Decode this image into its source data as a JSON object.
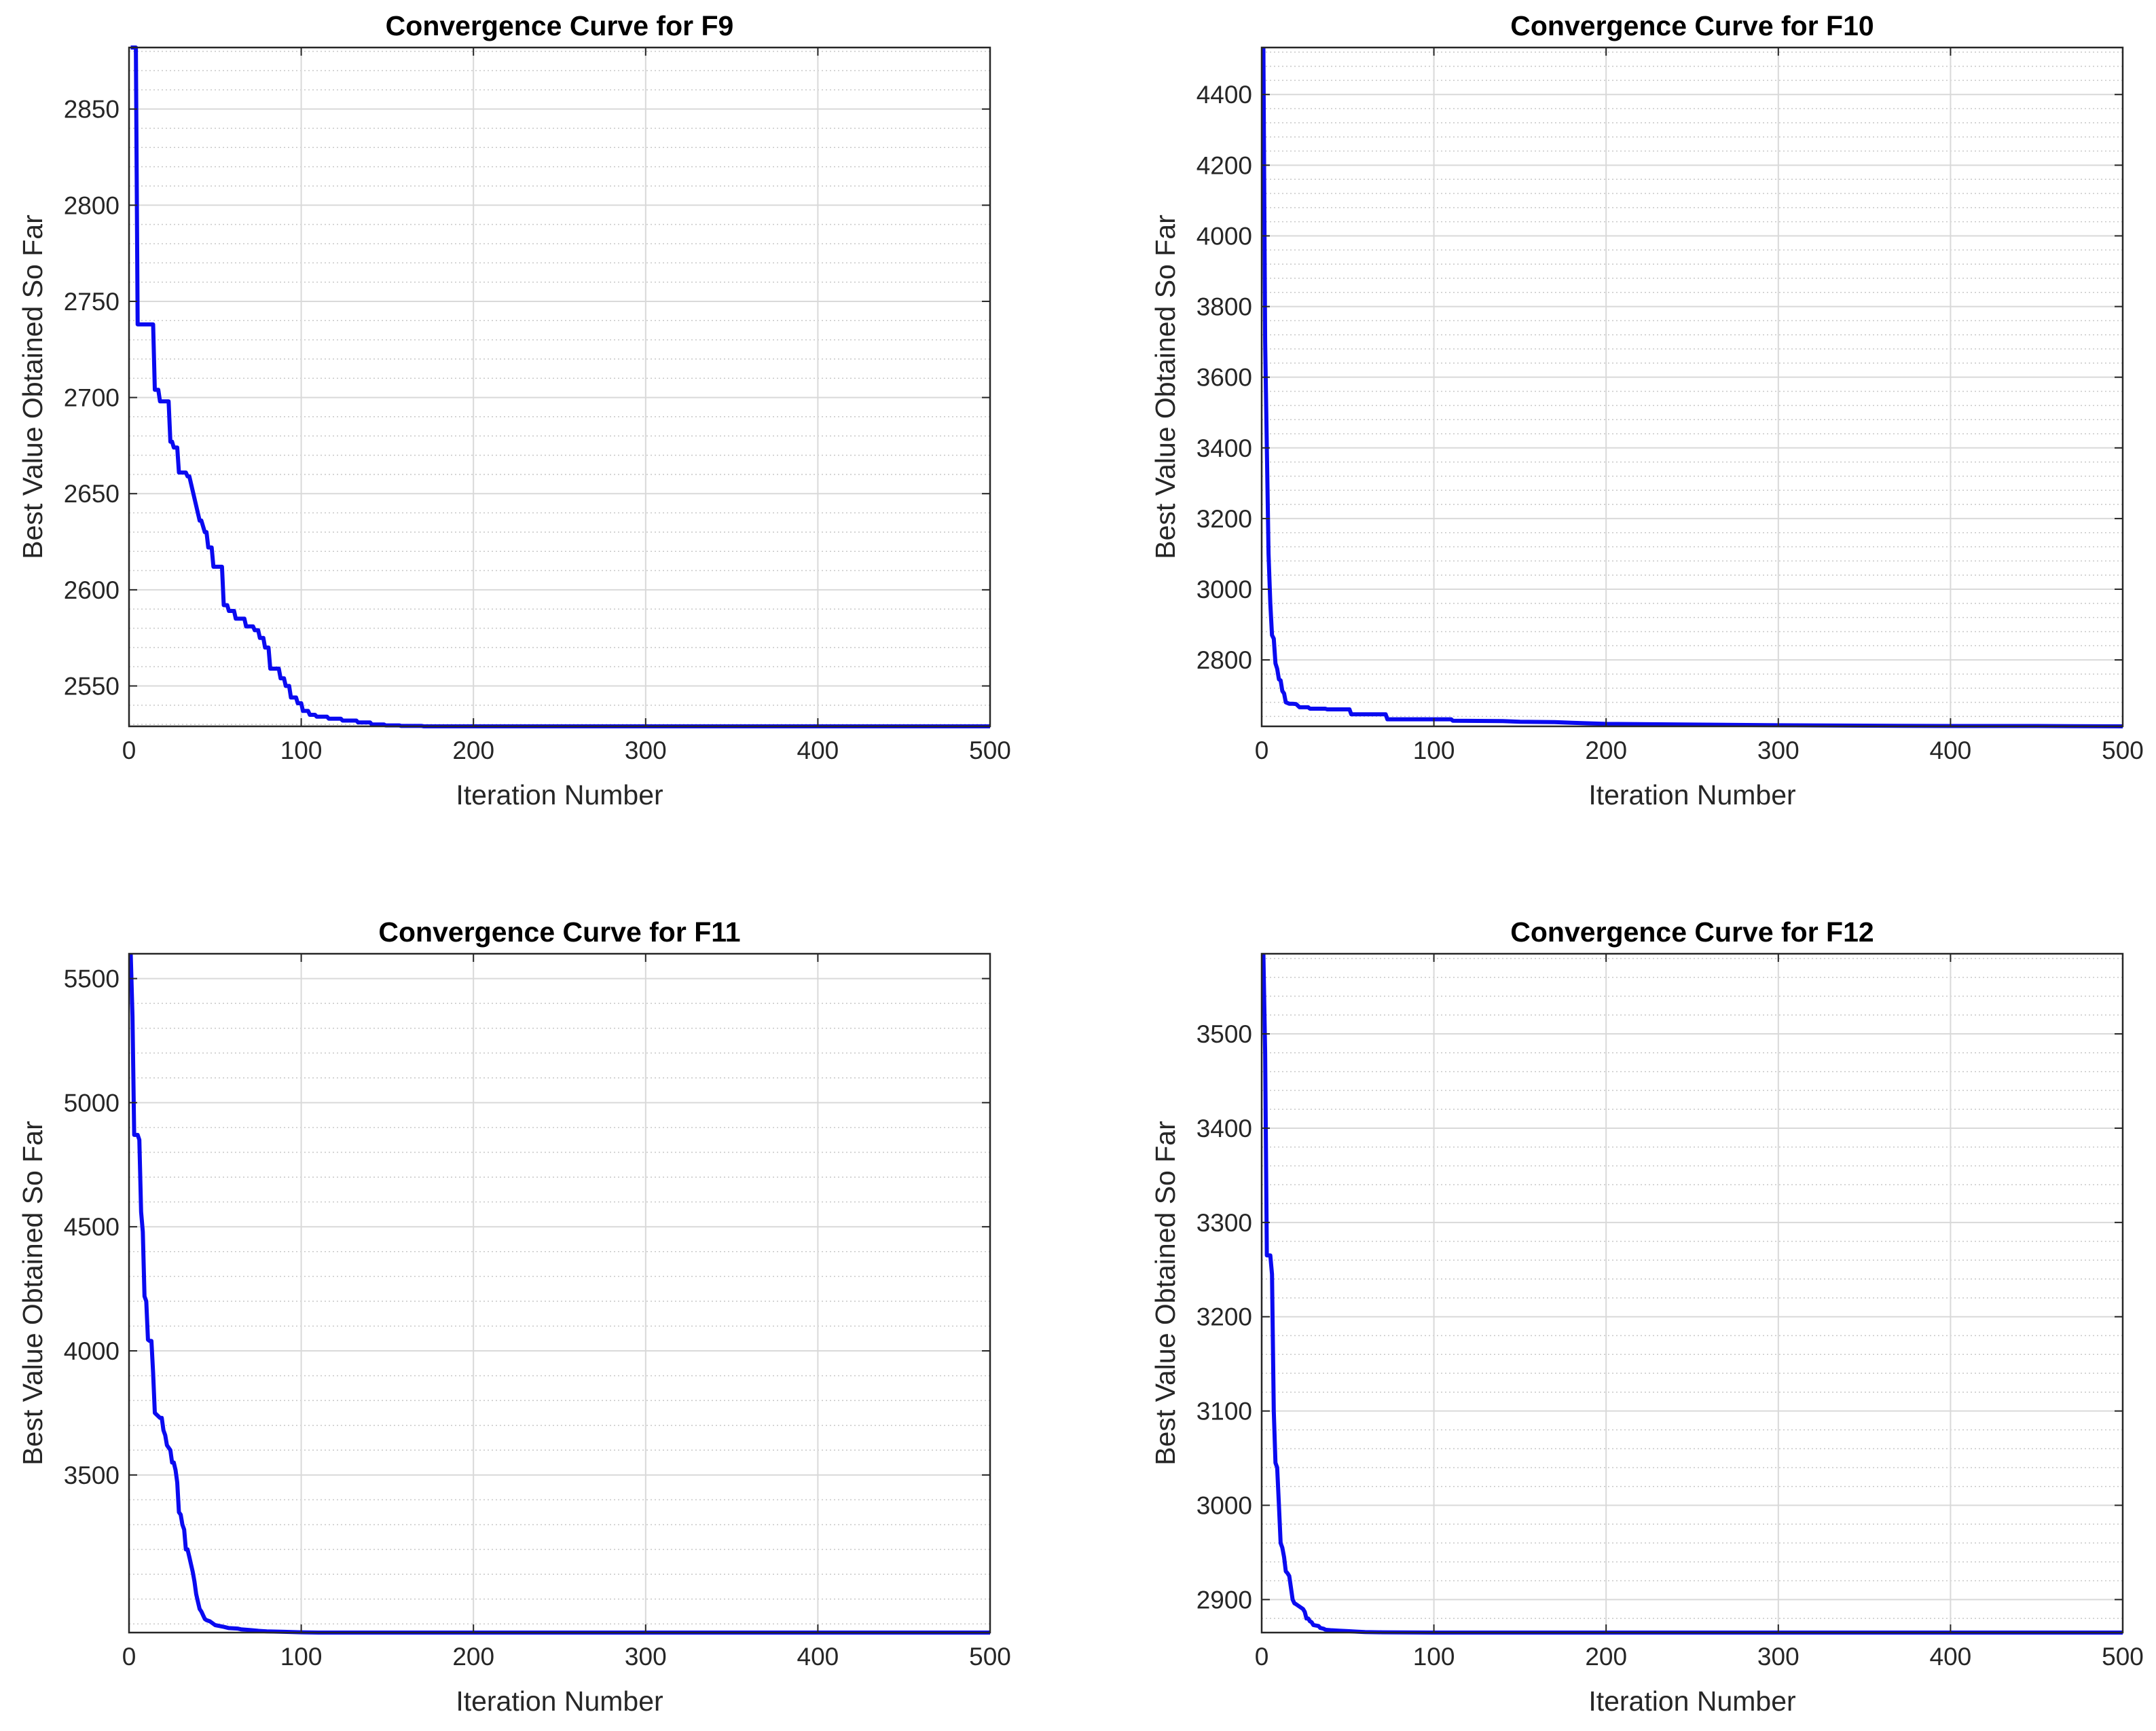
{
  "figure": {
    "colors": {
      "line": "#0a0af0",
      "major_grid": "#d9d9d9",
      "minor_grid": "#c8c8c8",
      "axes": "#262626",
      "background": "#ffffff"
    }
  },
  "chart_data": [
    {
      "type": "line",
      "title": "Convergence Curve for F9",
      "xlabel": "Iteration Number",
      "ylabel": "Best Value Obtained So Far",
      "xlim": [
        0,
        500
      ],
      "ylim": [
        2529,
        2882
      ],
      "grid": true,
      "xticks": [
        0,
        100,
        200,
        300,
        400,
        500
      ],
      "xtick_labels": [
        "0",
        "100",
        "200",
        "300",
        "400",
        "500"
      ],
      "yticks": [
        2550,
        2600,
        2650,
        2700,
        2750,
        2800,
        2850
      ],
      "ytick_labels": [
        "2550",
        "2600",
        "2650",
        "2700",
        "2750",
        "2800",
        "2850"
      ],
      "series": [
        {
          "name": "Convergence Curve for F9",
          "x": [
            1,
            3,
            4,
            5,
            6,
            14,
            15,
            17,
            18,
            23,
            24,
            25,
            26,
            28,
            29,
            33,
            34,
            35,
            41,
            42,
            44,
            45,
            46,
            48,
            49,
            54,
            55,
            57,
            58,
            61,
            62,
            67,
            68,
            72,
            73,
            75,
            76,
            78,
            79,
            81,
            82,
            87,
            88,
            90,
            91,
            93,
            94,
            97,
            98,
            100,
            101,
            104,
            105,
            108,
            109,
            115,
            116,
            123,
            124,
            132,
            133,
            140,
            141,
            148,
            149,
            157,
            158,
            170,
            171,
            200,
            250,
            300,
            350,
            400,
            450,
            500
          ],
          "values": [
            2882,
            2882,
            2882,
            2738,
            2738,
            2738,
            2704,
            2704,
            2698,
            2698,
            2677,
            2677,
            2674,
            2674,
            2661,
            2661,
            2659,
            2659,
            2636,
            2636,
            2630,
            2630,
            2622,
            2622,
            2612,
            2612,
            2592,
            2592,
            2589,
            2589,
            2585,
            2585,
            2581,
            2581,
            2579,
            2579,
            2575,
            2575,
            2570,
            2570,
            2559,
            2559,
            2554,
            2554,
            2550,
            2550,
            2544,
            2544,
            2541,
            2541,
            2537,
            2537,
            2535,
            2535,
            2534,
            2534,
            2533,
            2533,
            2532,
            2532,
            2531,
            2531,
            2530,
            2530,
            2529.5,
            2529.5,
            2529.2,
            2529.2,
            2529,
            2529,
            2529,
            2529,
            2529,
            2529,
            2529,
            2529
          ]
        }
      ]
    },
    {
      "type": "line",
      "title": "Convergence Curve for F10",
      "xlabel": "Iteration Number",
      "ylabel": "Best Value Obtained So Far",
      "xlim": [
        0,
        500
      ],
      "ylim": [
        2612,
        4533
      ],
      "grid": true,
      "xticks": [
        0,
        100,
        200,
        300,
        400,
        500
      ],
      "xtick_labels": [
        "0",
        "100",
        "200",
        "300",
        "400",
        "500"
      ],
      "yticks": [
        2800,
        3000,
        3200,
        3400,
        3600,
        3800,
        4000,
        4200,
        4400
      ],
      "ytick_labels": [
        "2800",
        "3000",
        "3200",
        "3400",
        "3600",
        "3800",
        "4000",
        "4200",
        "4400"
      ],
      "series": [
        {
          "name": "Convergence Curve for F10",
          "x": [
            1,
            2,
            3,
            4,
            5,
            6,
            7,
            8,
            9,
            10,
            11,
            12,
            13,
            14,
            16,
            18,
            20,
            22,
            27,
            28,
            37,
            38,
            51,
            52,
            72,
            73,
            110,
            111,
            140,
            150,
            170,
            180,
            200,
            250,
            300,
            350,
            400,
            450,
            500
          ],
          "values": [
            4533,
            3700,
            3400,
            3100,
            2960,
            2870,
            2860,
            2790,
            2775,
            2745,
            2742,
            2712,
            2705,
            2680,
            2676,
            2676,
            2675,
            2666,
            2666,
            2662,
            2662,
            2660,
            2660,
            2646,
            2646,
            2632,
            2632,
            2628,
            2627,
            2625,
            2624,
            2622,
            2619,
            2617,
            2615,
            2614,
            2613,
            2613,
            2612
          ]
        }
      ]
    },
    {
      "type": "line",
      "title": "Convergence Curve for F11",
      "xlabel": "Iteration Number",
      "ylabel": "Best Value Obtained So Far",
      "xlim": [
        0,
        500
      ],
      "ylim": [
        2865,
        5600
      ],
      "grid": true,
      "xticks": [
        0,
        100,
        200,
        300,
        400,
        500
      ],
      "xtick_labels": [
        "0",
        "100",
        "200",
        "300",
        "400",
        "500"
      ],
      "yticks": [
        3500,
        4000,
        4500,
        5000,
        5500
      ],
      "ytick_labels": [
        "3500",
        "4000",
        "4500",
        "5000",
        "5500"
      ],
      "series": [
        {
          "name": "Convergence Curve for F11",
          "x": [
            1,
            2,
            3,
            5,
            6,
            7,
            8,
            9,
            10,
            11,
            12,
            13,
            14,
            15,
            18,
            19,
            20,
            21,
            22,
            24,
            25,
            26,
            27,
            28,
            29,
            30,
            31,
            32,
            33,
            34,
            35,
            36,
            37,
            38,
            39,
            40,
            41,
            42,
            43,
            44,
            45,
            47,
            50,
            55,
            58,
            63,
            65,
            70,
            75,
            80,
            90,
            100,
            110,
            150,
            200,
            300,
            400,
            500
          ],
          "values": [
            5600,
            5350,
            4870,
            4870,
            4850,
            4560,
            4480,
            4220,
            4200,
            4045,
            4040,
            4040,
            3910,
            3750,
            3730,
            3730,
            3680,
            3660,
            3620,
            3600,
            3550,
            3550,
            3520,
            3470,
            3350,
            3340,
            3300,
            3280,
            3200,
            3200,
            3170,
            3140,
            3110,
            3070,
            3020,
            2990,
            2960,
            2950,
            2935,
            2920,
            2915,
            2910,
            2895,
            2888,
            2883,
            2881,
            2878,
            2875,
            2872,
            2870,
            2868,
            2866,
            2865,
            2865,
            2865,
            2865,
            2865,
            2865
          ]
        }
      ]
    },
    {
      "type": "line",
      "title": "Convergence Curve for F12",
      "xlabel": "Iteration Number",
      "ylabel": "Best Value Obtained So Far",
      "xlim": [
        0,
        500
      ],
      "ylim": [
        2865,
        3585
      ],
      "grid": true,
      "xticks": [
        0,
        100,
        200,
        300,
        400,
        500
      ],
      "xtick_labels": [
        "0",
        "100",
        "200",
        "300",
        "400",
        "500"
      ],
      "yticks": [
        2900,
        3000,
        3100,
        3200,
        3300,
        3400,
        3500
      ],
      "ytick_labels": [
        "2900",
        "3000",
        "3100",
        "3200",
        "3300",
        "3400",
        "3500"
      ],
      "series": [
        {
          "name": "Convergence Curve for F12",
          "x": [
            1,
            2,
            3,
            5,
            6,
            7,
            8,
            9,
            10,
            11,
            12,
            13,
            14,
            15,
            16,
            18,
            19,
            20,
            24,
            25,
            26,
            27,
            28,
            29,
            30,
            33,
            34,
            36,
            37,
            40,
            45,
            50,
            55,
            60,
            70,
            80,
            100,
            150,
            200,
            300,
            400,
            500
          ],
          "values": [
            3585,
            3480,
            3265,
            3265,
            3245,
            3100,
            3045,
            3040,
            3000,
            2960,
            2955,
            2945,
            2930,
            2928,
            2925,
            2900,
            2896,
            2895,
            2890,
            2887,
            2880,
            2880,
            2877,
            2876,
            2873,
            2872,
            2870,
            2869,
            2868,
            2867.5,
            2867,
            2866.5,
            2866,
            2865.5,
            2865.3,
            2865.2,
            2865,
            2865,
            2865,
            2865,
            2865,
            2865
          ]
        }
      ]
    }
  ]
}
